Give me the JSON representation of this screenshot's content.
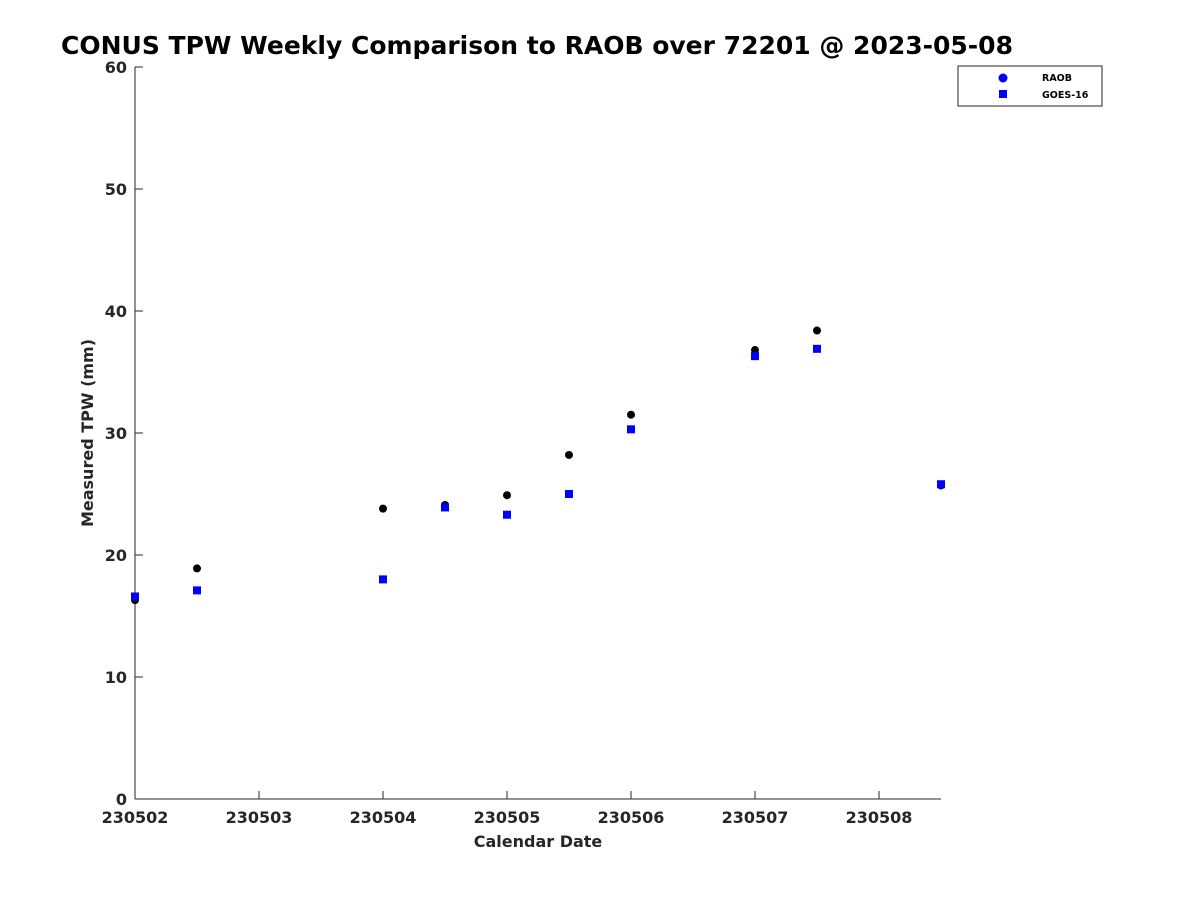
{
  "chart_data": {
    "type": "scatter",
    "title": "CONUS TPW Weekly Comparison to RAOB over 72201 @ 2023-05-08",
    "xlabel": "Calendar Date",
    "ylabel": "Measured TPW (mm)",
    "xlim": [
      "2023-05-02",
      "2023-05-08 12:00"
    ],
    "ylim": [
      0,
      60
    ],
    "x_ticks": [
      "2023-05-02",
      "2023-05-03",
      "2023-05-04",
      "2023-05-05",
      "2023-05-06",
      "2023-05-07",
      "2023-05-08"
    ],
    "x_tick_labels": [
      "230502",
      "230503",
      "230504",
      "230505",
      "230506",
      "230507",
      "230508"
    ],
    "y_ticks": [
      0,
      10,
      20,
      30,
      40,
      50,
      60
    ],
    "grid": false,
    "legend_position": "top-right",
    "series": [
      {
        "name": "RAOB",
        "marker": "circle",
        "color": "#000000",
        "legend_color": "#0000ff",
        "points": [
          {
            "x": "2023-05-02 00:00",
            "y": 16.3
          },
          {
            "x": "2023-05-02 12:00",
            "y": 18.9
          },
          {
            "x": "2023-05-04 00:00",
            "y": 23.8
          },
          {
            "x": "2023-05-04 12:00",
            "y": 24.1
          },
          {
            "x": "2023-05-05 00:00",
            "y": 24.9
          },
          {
            "x": "2023-05-05 12:00",
            "y": 28.2
          },
          {
            "x": "2023-05-06 00:00",
            "y": 31.5
          },
          {
            "x": "2023-05-07 00:00",
            "y": 36.8
          },
          {
            "x": "2023-05-07 12:00",
            "y": 38.4
          },
          {
            "x": "2023-05-08 12:00",
            "y": 25.7
          }
        ]
      },
      {
        "name": "GOES-16",
        "marker": "square",
        "color": "#0000ff",
        "legend_color": "#0000ff",
        "points": [
          {
            "x": "2023-05-02 00:00",
            "y": 16.6
          },
          {
            "x": "2023-05-02 12:00",
            "y": 17.1
          },
          {
            "x": "2023-05-04 00:00",
            "y": 18.0
          },
          {
            "x": "2023-05-04 12:00",
            "y": 23.9
          },
          {
            "x": "2023-05-05 00:00",
            "y": 23.3
          },
          {
            "x": "2023-05-05 12:00",
            "y": 25.0
          },
          {
            "x": "2023-05-06 00:00",
            "y": 30.3
          },
          {
            "x": "2023-05-07 00:00",
            "y": 36.3
          },
          {
            "x": "2023-05-07 12:00",
            "y": 36.9
          },
          {
            "x": "2023-05-08 12:00",
            "y": 25.8
          }
        ]
      }
    ]
  }
}
